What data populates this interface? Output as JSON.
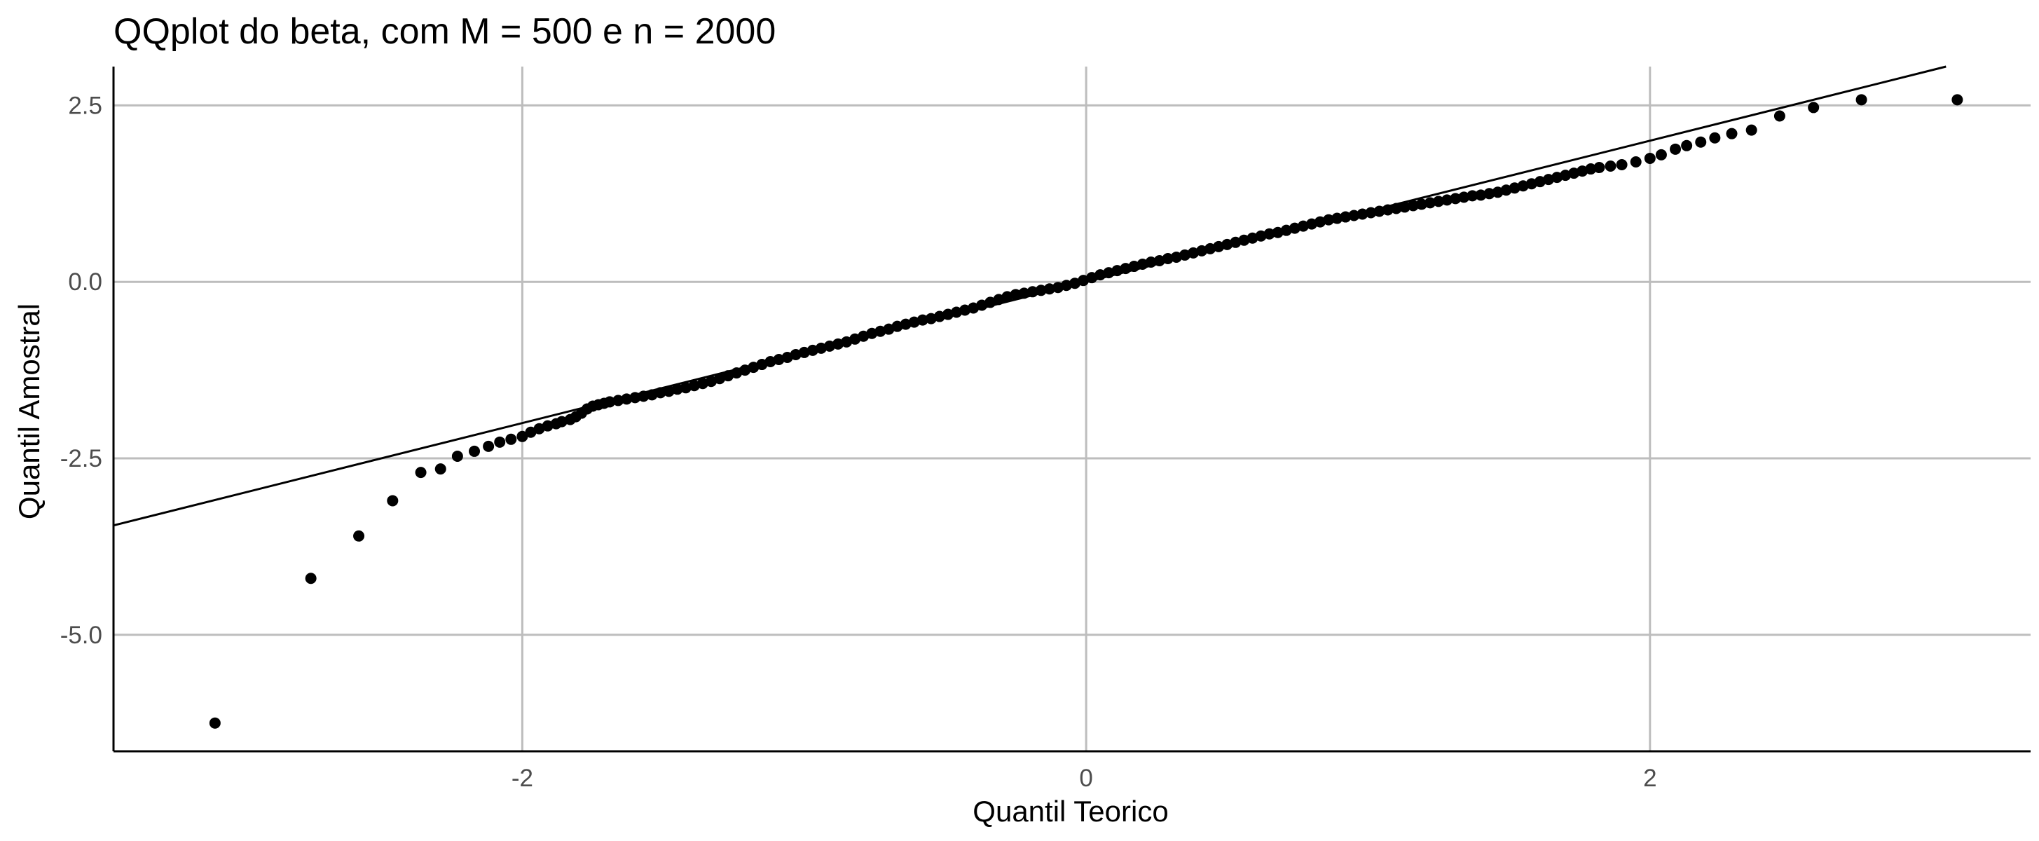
{
  "chart_data": {
    "type": "scatter",
    "title": "QQplot do beta, com M = 500 e n = 2000",
    "xlabel": "Quantil Teorico",
    "ylabel": "Quantil Amostral",
    "xlim": [
      -3.45,
      3.35
    ],
    "ylim": [
      -6.65,
      3.05
    ],
    "x_ticks": [
      -2,
      0,
      2
    ],
    "x_tick_labels": [
      "-2",
      "0",
      "2"
    ],
    "y_ticks": [
      -5.0,
      -2.5,
      0.0,
      2.5
    ],
    "y_tick_labels": [
      "-5.0",
      "-2.5",
      "0.0",
      "2.5"
    ],
    "grid": true,
    "reference_line": {
      "intercept": 0.0,
      "slope": 1.0
    },
    "series": [
      {
        "points": [
          [
            -3.09,
            -6.25
          ],
          [
            -2.75,
            -4.2
          ],
          [
            -2.58,
            -3.6
          ],
          [
            -2.46,
            -3.1
          ],
          [
            -2.36,
            -2.7
          ],
          [
            -2.29,
            -2.65
          ],
          [
            -2.23,
            -2.47
          ],
          [
            -2.17,
            -2.4
          ],
          [
            -2.12,
            -2.33
          ],
          [
            -2.08,
            -2.27
          ],
          [
            -2.04,
            -2.23
          ],
          [
            -2.0,
            -2.19
          ],
          [
            -1.97,
            -2.13
          ],
          [
            -1.94,
            -2.08
          ],
          [
            -1.91,
            -2.04
          ],
          [
            -1.88,
            -2.01
          ],
          [
            -1.86,
            -1.98
          ],
          [
            -1.83,
            -1.95
          ],
          [
            -1.81,
            -1.91
          ],
          [
            -1.79,
            -1.86
          ],
          [
            -1.77,
            -1.8
          ],
          [
            -1.75,
            -1.76
          ],
          [
            -1.73,
            -1.74
          ],
          [
            -1.71,
            -1.72
          ],
          [
            -1.69,
            -1.7
          ],
          [
            -1.66,
            -1.68
          ],
          [
            -1.63,
            -1.66
          ],
          [
            -1.6,
            -1.64
          ],
          [
            -1.57,
            -1.62
          ],
          [
            -1.54,
            -1.6
          ],
          [
            -1.51,
            -1.57
          ],
          [
            -1.48,
            -1.55
          ],
          [
            -1.45,
            -1.52
          ],
          [
            -1.42,
            -1.5
          ],
          [
            -1.39,
            -1.47
          ],
          [
            -1.36,
            -1.44
          ],
          [
            -1.33,
            -1.41
          ],
          [
            -1.3,
            -1.37
          ],
          [
            -1.27,
            -1.33
          ],
          [
            -1.24,
            -1.29
          ],
          [
            -1.21,
            -1.25
          ],
          [
            -1.18,
            -1.21
          ],
          [
            -1.15,
            -1.17
          ],
          [
            -1.12,
            -1.13
          ],
          [
            -1.09,
            -1.1
          ],
          [
            -1.06,
            -1.07
          ],
          [
            -1.03,
            -1.03
          ],
          [
            -1.0,
            -1.0
          ],
          [
            -0.97,
            -0.97
          ],
          [
            -0.94,
            -0.94
          ],
          [
            -0.91,
            -0.91
          ],
          [
            -0.88,
            -0.88
          ],
          [
            -0.85,
            -0.85
          ],
          [
            -0.82,
            -0.81
          ],
          [
            -0.79,
            -0.77
          ],
          [
            -0.76,
            -0.73
          ],
          [
            -0.73,
            -0.7
          ],
          [
            -0.7,
            -0.67
          ],
          [
            -0.67,
            -0.63
          ],
          [
            -0.64,
            -0.6
          ],
          [
            -0.61,
            -0.57
          ],
          [
            -0.58,
            -0.54
          ],
          [
            -0.55,
            -0.52
          ],
          [
            -0.52,
            -0.49
          ],
          [
            -0.49,
            -0.46
          ],
          [
            -0.46,
            -0.43
          ],
          [
            -0.43,
            -0.4
          ],
          [
            -0.4,
            -0.37
          ],
          [
            -0.37,
            -0.33
          ],
          [
            -0.34,
            -0.29
          ],
          [
            -0.31,
            -0.25
          ],
          [
            -0.28,
            -0.21
          ],
          [
            -0.25,
            -0.18
          ],
          [
            -0.22,
            -0.16
          ],
          [
            -0.19,
            -0.14
          ],
          [
            -0.16,
            -0.12
          ],
          [
            -0.13,
            -0.1
          ],
          [
            -0.1,
            -0.08
          ],
          [
            -0.07,
            -0.05
          ],
          [
            -0.04,
            -0.02
          ],
          [
            -0.01,
            0.02
          ],
          [
            0.02,
            0.06
          ],
          [
            0.05,
            0.1
          ],
          [
            0.08,
            0.13
          ],
          [
            0.11,
            0.16
          ],
          [
            0.14,
            0.19
          ],
          [
            0.17,
            0.22
          ],
          [
            0.2,
            0.25
          ],
          [
            0.23,
            0.28
          ],
          [
            0.26,
            0.3
          ],
          [
            0.29,
            0.33
          ],
          [
            0.32,
            0.35
          ],
          [
            0.35,
            0.38
          ],
          [
            0.38,
            0.41
          ],
          [
            0.41,
            0.44
          ],
          [
            0.44,
            0.47
          ],
          [
            0.47,
            0.5
          ],
          [
            0.5,
            0.53
          ],
          [
            0.53,
            0.56
          ],
          [
            0.56,
            0.59
          ],
          [
            0.59,
            0.62
          ],
          [
            0.62,
            0.65
          ],
          [
            0.65,
            0.68
          ],
          [
            0.68,
            0.7
          ],
          [
            0.71,
            0.73
          ],
          [
            0.74,
            0.76
          ],
          [
            0.77,
            0.79
          ],
          [
            0.8,
            0.82
          ],
          [
            0.83,
            0.85
          ],
          [
            0.86,
            0.88
          ],
          [
            0.89,
            0.9
          ],
          [
            0.92,
            0.92
          ],
          [
            0.95,
            0.94
          ],
          [
            0.98,
            0.96
          ],
          [
            1.01,
            0.98
          ],
          [
            1.04,
            1.0
          ],
          [
            1.07,
            1.02
          ],
          [
            1.1,
            1.04
          ],
          [
            1.13,
            1.06
          ],
          [
            1.16,
            1.08
          ],
          [
            1.19,
            1.1
          ],
          [
            1.22,
            1.12
          ],
          [
            1.25,
            1.14
          ],
          [
            1.28,
            1.16
          ],
          [
            1.31,
            1.18
          ],
          [
            1.34,
            1.2
          ],
          [
            1.37,
            1.22
          ],
          [
            1.4,
            1.23
          ],
          [
            1.43,
            1.25
          ],
          [
            1.46,
            1.27
          ],
          [
            1.49,
            1.3
          ],
          [
            1.52,
            1.33
          ],
          [
            1.55,
            1.36
          ],
          [
            1.58,
            1.39
          ],
          [
            1.61,
            1.42
          ],
          [
            1.64,
            1.45
          ],
          [
            1.67,
            1.48
          ],
          [
            1.7,
            1.51
          ],
          [
            1.73,
            1.54
          ],
          [
            1.76,
            1.57
          ],
          [
            1.79,
            1.6
          ],
          [
            1.82,
            1.62
          ],
          [
            1.86,
            1.64
          ],
          [
            1.9,
            1.66
          ],
          [
            1.95,
            1.7
          ],
          [
            2.0,
            1.75
          ],
          [
            2.04,
            1.8
          ],
          [
            2.09,
            1.88
          ],
          [
            2.13,
            1.93
          ],
          [
            2.18,
            1.98
          ],
          [
            2.23,
            2.04
          ],
          [
            2.29,
            2.1
          ],
          [
            2.36,
            2.15
          ],
          [
            2.46,
            2.35
          ],
          [
            2.58,
            2.47
          ],
          [
            2.75,
            2.58
          ],
          [
            3.09,
            2.58
          ]
        ]
      }
    ]
  }
}
